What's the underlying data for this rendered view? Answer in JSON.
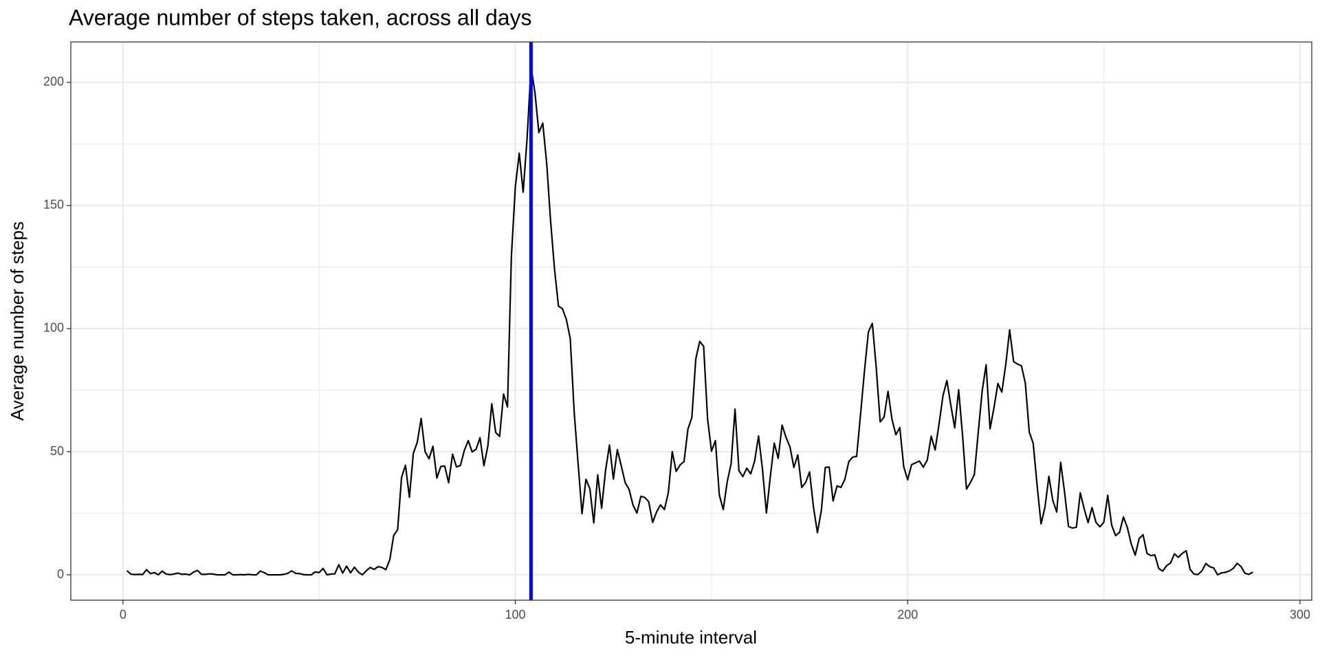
{
  "chart_data": {
    "type": "line",
    "title": "Average number of steps taken, across all days",
    "x_label": "5-minute interval",
    "y_label": "Average number of steps",
    "x": [
      1,
      2,
      3,
      4,
      5,
      6,
      7,
      8,
      9,
      10,
      11,
      12,
      13,
      14,
      15,
      16,
      17,
      18,
      19,
      20,
      21,
      22,
      23,
      24,
      25,
      26,
      27,
      28,
      29,
      30,
      31,
      32,
      33,
      34,
      35,
      36,
      37,
      38,
      39,
      40,
      41,
      42,
      43,
      44,
      45,
      46,
      47,
      48,
      49,
      50,
      51,
      52,
      53,
      54,
      55,
      56,
      57,
      58,
      59,
      60,
      61,
      62,
      63,
      64,
      65,
      66,
      67,
      68,
      69,
      70,
      71,
      72,
      73,
      74,
      75,
      76,
      77,
      78,
      79,
      80,
      81,
      82,
      83,
      84,
      85,
      86,
      87,
      88,
      89,
      90,
      91,
      92,
      93,
      94,
      95,
      96,
      97,
      98,
      99,
      100,
      101,
      102,
      103,
      104,
      105,
      106,
      107,
      108,
      109,
      110,
      111,
      112,
      113,
      114,
      115,
      116,
      117,
      118,
      119,
      120,
      121,
      122,
      123,
      124,
      125,
      126,
      127,
      128,
      129,
      130,
      131,
      132,
      133,
      134,
      135,
      136,
      137,
      138,
      139,
      140,
      141,
      142,
      143,
      144,
      145,
      146,
      147,
      148,
      149,
      150,
      151,
      152,
      153,
      154,
      155,
      156,
      157,
      158,
      159,
      160,
      161,
      162,
      163,
      164,
      165,
      166,
      167,
      168,
      169,
      170,
      171,
      172,
      173,
      174,
      175,
      176,
      177,
      178,
      179,
      180,
      181,
      182,
      183,
      184,
      185,
      186,
      187,
      188,
      189,
      190,
      191,
      192,
      193,
      194,
      195,
      196,
      197,
      198,
      199,
      200,
      201,
      202,
      203,
      204,
      205,
      206,
      207,
      208,
      209,
      210,
      211,
      212,
      213,
      214,
      215,
      216,
      217,
      218,
      219,
      220,
      221,
      222,
      223,
      224,
      225,
      226,
      227,
      228,
      229,
      230,
      231,
      232,
      233,
      234,
      235,
      236,
      237,
      238,
      239,
      240,
      241,
      242,
      243,
      244,
      245,
      246,
      247,
      248,
      249,
      250,
      251,
      252,
      253,
      254,
      255,
      256,
      257,
      258,
      259,
      260,
      261,
      262,
      263,
      264,
      265,
      266,
      267,
      268,
      269,
      270,
      271,
      272,
      273,
      274,
      275,
      276,
      277,
      278,
      279,
      280,
      281,
      282,
      283,
      284,
      285,
      286,
      287,
      288
    ],
    "series": [
      {
        "color": "#000000",
        "values": [
          1.7,
          0.3,
          0.1,
          0.2,
          0.1,
          2.1,
          0.5,
          0.9,
          0,
          1.5,
          0.3,
          0.1,
          0.3,
          0.7,
          0.2,
          0.3,
          0,
          1.1,
          1.8,
          0.2,
          0.2,
          0.4,
          0.3,
          0,
          0,
          0,
          1.1,
          0,
          0,
          0.1,
          0,
          0.2,
          0,
          0,
          1.5,
          0.9,
          0,
          0,
          0,
          0,
          0.2,
          0.6,
          1.6,
          0.6,
          0.5,
          0.1,
          0,
          0,
          1.2,
          0.9,
          2.6,
          0,
          0.3,
          0.4,
          4.1,
          0.7,
          3.5,
          0.8,
          3.1,
          1.1,
          0,
          1.6,
          3,
          2.2,
          3.3,
          3,
          2.1,
          6.1,
          16,
          18.3,
          39.5,
          44.5,
          31.5,
          49.3,
          53.8,
          63.5,
          50,
          47.1,
          52.2,
          39.3,
          44,
          44.2,
          37.4,
          49,
          43.8,
          44.4,
          50.5,
          54.5,
          49.9,
          51,
          55.7,
          44.3,
          52.3,
          69.5,
          57.8,
          56.2,
          73.4,
          68.2,
          129.4,
          157.5,
          171.2,
          155.4,
          177.3,
          206.2,
          195.9,
          179.6,
          183.4,
          167,
          143.5,
          124,
          109.1,
          108.1,
          103.7,
          96,
          66.2,
          45.2,
          24.8,
          38.8,
          35,
          21.1,
          40.6,
          27,
          42.4,
          52.7,
          38.9,
          50.8,
          44.3,
          37.4,
          34.7,
          28.3,
          25.1,
          31.9,
          31.4,
          29.7,
          21.3,
          25.5,
          28.4,
          26.5,
          33.4,
          50,
          42,
          44.6,
          46,
          59.2,
          63.9,
          87.7,
          94.8,
          92.8,
          63.4,
          50.2,
          54.5,
          32.4,
          26.5,
          37.7,
          45.1,
          67.3,
          42.3,
          39.9,
          43.3,
          41,
          46.2,
          56.4,
          42.8,
          25.1,
          40,
          53.5,
          47.3,
          60.8,
          55.8,
          52,
          43.6,
          48.7,
          35.5,
          37.5,
          41.8,
          27.5,
          17.1,
          26.1,
          43.6,
          43.8,
          30,
          36.1,
          35.5,
          38.8,
          46,
          47.8,
          48.1,
          65.3,
          82.9,
          98.7,
          102.1,
          84,
          62.1,
          64.1,
          74.5,
          63.2,
          56.9,
          59.8,
          43.9,
          38.6,
          44.7,
          45.5,
          46.2,
          43.7,
          46.6,
          56.3,
          50.7,
          61.2,
          72.7,
          78.9,
          68.9,
          59.7,
          75.1,
          56.5,
          34.8,
          37.5,
          40.7,
          58,
          74.7,
          85.3,
          59.3,
          67.8,
          77.7,
          74.2,
          85.3,
          99.5,
          86.6,
          85.6,
          84.9,
          77.8,
          58,
          53.4,
          36.3,
          20.7,
          27.4,
          40,
          30.2,
          25.5,
          45.7,
          33.5,
          19.6,
          19,
          19.3,
          33.3,
          26.8,
          21.2,
          27.3,
          21.3,
          19.5,
          21.3,
          32.3,
          20.2,
          15.9,
          17.2,
          23.5,
          19.2,
          12.5,
          8,
          14.7,
          16.3,
          8.7,
          7.8,
          8.1,
          2.6,
          1.5,
          3.7,
          4.8,
          8.5,
          7.1,
          8.7,
          9.8,
          2.2,
          0.3,
          0.1,
          1.6,
          4.6,
          3.3,
          2.8,
          0,
          0.8,
          1,
          1.6,
          2.6,
          4.7,
          3.3,
          0.6,
          0.2,
          1.1
        ]
      }
    ],
    "vline": {
      "x": 104,
      "color": "#0000ff"
    },
    "xlim": [
      -13.3,
      303
    ],
    "xticks": [
      0,
      100,
      200,
      300
    ],
    "x_minor_ticks": [
      50,
      150,
      250
    ],
    "ylim": [
      -10.3,
      216.4
    ],
    "yticks": [
      0,
      50,
      100,
      150,
      200
    ],
    "y_minor_ticks": [
      25,
      75,
      125,
      175
    ],
    "grid": true
  }
}
